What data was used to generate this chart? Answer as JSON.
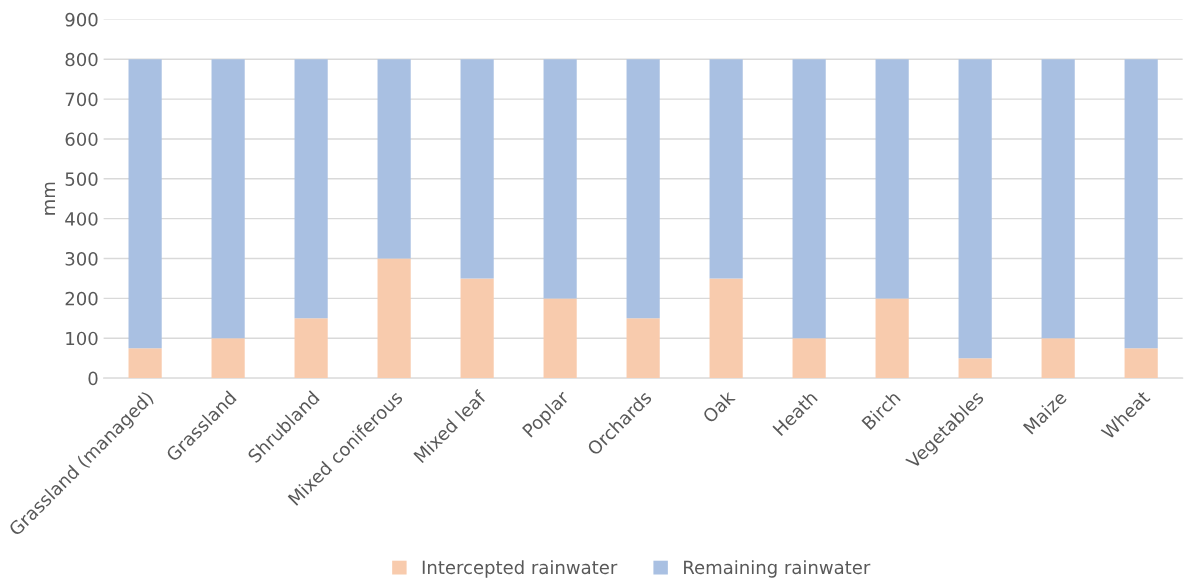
{
  "chart_data": {
    "type": "bar",
    "stacked": true,
    "ylabel": "mm",
    "categories": [
      "Grassland (managed)",
      "Grassland",
      "Shrubland",
      "Mixed coniferous",
      "Mixed leaf",
      "Poplar",
      "Orchards",
      "Oak",
      "Heath",
      "Birch",
      "Vegetables",
      "Maize",
      "Wheat"
    ],
    "series": [
      {
        "name": "Intercepted rainwater",
        "color": "#f8cbad",
        "values": [
          75,
          100,
          150,
          300,
          250,
          200,
          150,
          250,
          100,
          200,
          50,
          100,
          75
        ]
      },
      {
        "name": "Remaining rainwater",
        "color": "#a9c0e2",
        "values": [
          725,
          700,
          650,
          500,
          550,
          600,
          650,
          550,
          700,
          600,
          750,
          700,
          725
        ]
      }
    ],
    "ylim": [
      0,
      900
    ],
    "yticks": [
      0,
      100,
      200,
      300,
      400,
      500,
      600,
      700,
      800,
      900
    ],
    "grid": "y",
    "legend": "bottom"
  }
}
